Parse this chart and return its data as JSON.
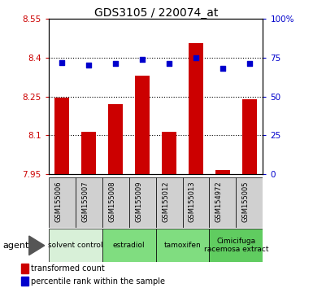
{
  "title": "GDS3105 / 220074_at",
  "samples": [
    "GSM155006",
    "GSM155007",
    "GSM155008",
    "GSM155009",
    "GSM155012",
    "GSM155013",
    "GSM154972",
    "GSM155005"
  ],
  "bar_values": [
    8.245,
    8.115,
    8.22,
    8.33,
    8.115,
    8.455,
    7.965,
    8.24
  ],
  "dot_values": [
    72,
    70,
    71,
    74,
    71,
    75,
    68,
    71
  ],
  "ylim_left": [
    7.95,
    8.55
  ],
  "ylim_right": [
    0,
    100
  ],
  "yticks_left": [
    7.95,
    8.1,
    8.25,
    8.4,
    8.55
  ],
  "yticks_right": [
    0,
    25,
    50,
    75,
    100
  ],
  "ytick_labels_left": [
    "7.95",
    "8.1",
    "8.25",
    "8.4",
    "8.55"
  ],
  "ytick_labels_right": [
    "0",
    "25",
    "50",
    "75",
    "100%"
  ],
  "bar_color": "#cc0000",
  "dot_color": "#0000cc",
  "bar_baseline": 7.95,
  "groups": [
    {
      "label": "solvent control",
      "start": 0,
      "end": 2,
      "color": "#d8f0d8"
    },
    {
      "label": "estradiol",
      "start": 2,
      "end": 4,
      "color": "#80dd80"
    },
    {
      "label": "tamoxifen",
      "start": 4,
      "end": 6,
      "color": "#80dd80"
    },
    {
      "label": "Cimicifuga\nracemosa extract",
      "start": 6,
      "end": 8,
      "color": "#60cc60"
    }
  ],
  "agent_label": "agent",
  "legend_bar_label": "transformed count",
  "legend_dot_label": "percentile rank within the sample",
  "bg_color": "#d0d0d0",
  "plot_bg": "#ffffff"
}
